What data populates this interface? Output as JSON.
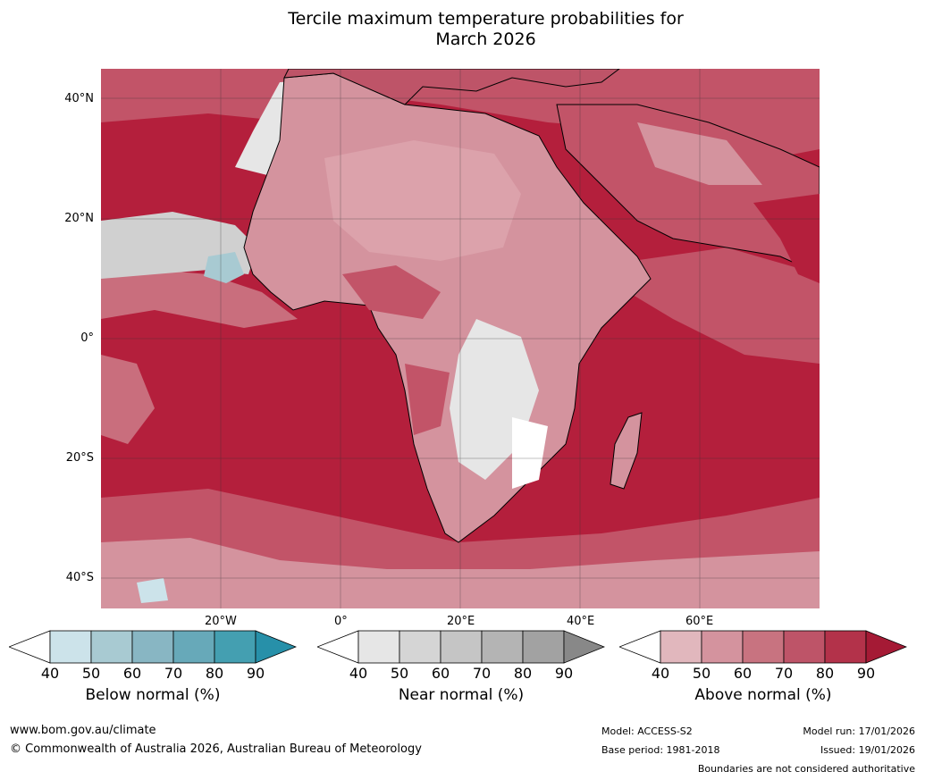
{
  "title_line1": "Tercile maximum temperature probabilities for",
  "title_line2": "March 2026",
  "latitude_labels": [
    "40°N",
    "20°N",
    "0°",
    "20°S",
    "40°S"
  ],
  "longitude_labels": [
    "20°W",
    "0°",
    "20°E",
    "40°E",
    "60°E"
  ],
  "colorbars": [
    {
      "title": "Below normal (%)",
      "ticks": [
        "40",
        "50",
        "60",
        "70",
        "80",
        "90"
      ],
      "colors": [
        "#ffffff",
        "#cce3ea",
        "#a8cad2",
        "#88b6c3",
        "#67a9b9",
        "#449fb1",
        "#2790a9"
      ]
    },
    {
      "title": "Near normal (%)",
      "ticks": [
        "40",
        "50",
        "60",
        "70",
        "80",
        "90"
      ],
      "colors": [
        "#ffffff",
        "#e6e6e6",
        "#d5d5d5",
        "#c5c5c5",
        "#b4b4b4",
        "#a2a2a2",
        "#888888"
      ]
    },
    {
      "title": "Above normal (%)",
      "ticks": [
        "40",
        "50",
        "60",
        "70",
        "80",
        "90"
      ],
      "colors": [
        "#ffffff",
        "#e1b7bd",
        "#d4939e",
        "#c87380",
        "#be5468",
        "#b3324a",
        "#a51a35"
      ]
    }
  ],
  "footer": {
    "website": "www.bom.gov.au/climate",
    "copyright": "© Commonwealth of Australia 2026, Australian Bureau of Meteorology",
    "model": "Model: ACCESS-S2",
    "base_period": "Base period: 1981-2018",
    "model_run": "Model run: 17/01/2026",
    "issued": "Issued: 19/01/2026",
    "disclaimer": "Boundaries are not considered authoritative"
  }
}
